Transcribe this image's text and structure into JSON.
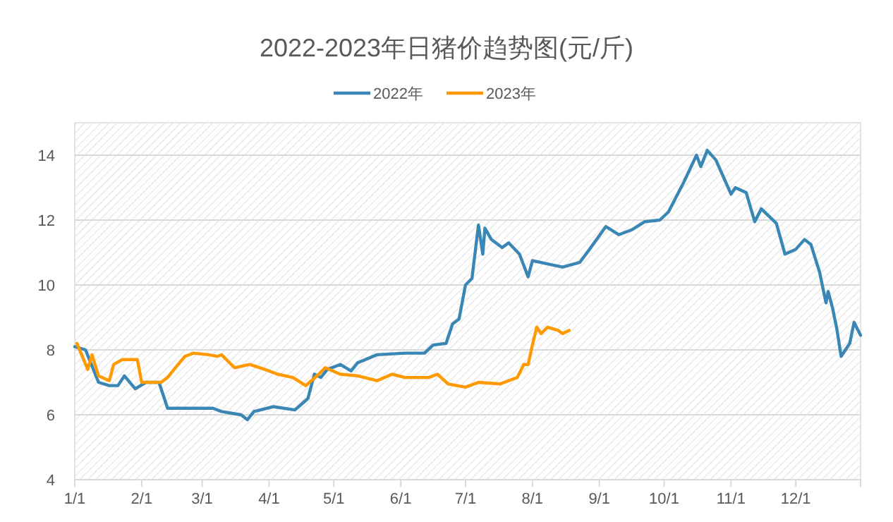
{
  "chart_data": {
    "type": "line",
    "title": "2022-2023年日猪价趋势图(元/斤)",
    "legend": "top",
    "grid": "y",
    "marker": "none",
    "line_style": "solid",
    "xlim": [
      "--01-01",
      "--12-31"
    ],
    "xticks": [
      {
        "value": "--01-01",
        "label": "1/1"
      },
      {
        "value": "--02-01",
        "label": "2/1"
      },
      {
        "value": "--03-01",
        "label": "3/1"
      },
      {
        "value": "--04-01",
        "label": "4/1"
      },
      {
        "value": "--05-01",
        "label": "5/1"
      },
      {
        "value": "--06-01",
        "label": "6/1"
      },
      {
        "value": "--07-01",
        "label": "7/1"
      },
      {
        "value": "--08-01",
        "label": "8/1"
      },
      {
        "value": "--09-01",
        "label": "9/1"
      },
      {
        "value": "--10-01",
        "label": "10/1"
      },
      {
        "value": "--11-01",
        "label": "11/1"
      },
      {
        "value": "--12-01",
        "label": "12/1"
      }
    ],
    "ylim": [
      4,
      15
    ],
    "yticks": [
      4,
      6,
      8,
      10,
      12,
      14
    ],
    "series": [
      {
        "name": "2022年",
        "color": "#3a87b5",
        "x": [
          "--01-01",
          "--01-06",
          "--01-09",
          "--01-12",
          "--01-17",
          "--01-21",
          "--01-24",
          "--01-29",
          "--02-03",
          "--02-09",
          "--02-13",
          "--02-18",
          "--03-06",
          "--03-10",
          "--03-19",
          "--03-22",
          "--03-25",
          "--04-03",
          "--04-13",
          "--04-19",
          "--04-22",
          "--04-25",
          "--04-28",
          "--05-04",
          "--05-09",
          "--05-12",
          "--05-21",
          "--06-03",
          "--06-12",
          "--06-16",
          "--06-22",
          "--06-25",
          "--06-28",
          "--07-01",
          "--07-04",
          "--07-07",
          "--07-09",
          "--07-10",
          "--07-13",
          "--07-18",
          "--07-21",
          "--07-26",
          "--07-30",
          "--08-01",
          "--08-08",
          "--08-15",
          "--08-23",
          "--08-28",
          "--09-04",
          "--09-10",
          "--09-16",
          "--09-22",
          "--09-29",
          "--10-03",
          "--10-10",
          "--10-16",
          "--10-18",
          "--10-21",
          "--10-25",
          "--10-29",
          "--11-01",
          "--11-03",
          "--11-08",
          "--11-12",
          "--11-15",
          "--11-22",
          "--11-26",
          "--12-01",
          "--12-05",
          "--12-08",
          "--12-12",
          "--12-15",
          "--12-16",
          "--12-18",
          "--12-20",
          "--12-22",
          "--12-26",
          "--12-28",
          "--12-31"
        ],
        "values": [
          8.1,
          8.0,
          7.5,
          7.0,
          6.9,
          6.9,
          7.2,
          6.8,
          7.0,
          7.0,
          6.2,
          6.2,
          6.2,
          6.1,
          6.0,
          5.85,
          6.1,
          6.25,
          6.15,
          6.5,
          7.25,
          7.15,
          7.4,
          7.55,
          7.35,
          7.6,
          7.85,
          7.9,
          7.9,
          8.15,
          8.2,
          8.8,
          8.95,
          10.0,
          10.2,
          11.85,
          10.95,
          11.75,
          11.4,
          11.15,
          11.3,
          10.95,
          10.25,
          10.75,
          10.65,
          10.55,
          10.7,
          11.15,
          11.8,
          11.55,
          11.7,
          11.95,
          12.0,
          12.25,
          13.15,
          14.0,
          13.65,
          14.15,
          13.85,
          13.25,
          12.8,
          13.0,
          12.85,
          11.95,
          12.35,
          11.9,
          10.95,
          11.1,
          11.4,
          11.25,
          10.4,
          9.45,
          9.8,
          9.3,
          8.65,
          7.8,
          8.2,
          8.85,
          8.45
        ]
      },
      {
        "name": "2023年",
        "color": "#ff9900",
        "x": [
          "--01-02",
          "--01-07",
          "--01-09",
          "--01-12",
          "--01-17",
          "--01-19",
          "--01-23",
          "--01-30",
          "--02-01",
          "--02-10",
          "--02-13",
          "--02-16",
          "--02-21",
          "--02-25",
          "--03-04",
          "--03-08",
          "--03-10",
          "--03-16",
          "--03-23",
          "--03-30",
          "--04-05",
          "--04-12",
          "--04-18",
          "--04-24",
          "--04-27",
          "--05-04",
          "--05-12",
          "--05-21",
          "--05-28",
          "--06-03",
          "--06-14",
          "--06-18",
          "--06-23",
          "--07-01",
          "--07-07",
          "--07-17",
          "--07-25",
          "--07-28",
          "--07-30",
          "--08-01",
          "--08-03",
          "--08-05",
          "--08-08",
          "--08-13",
          "--08-15",
          "--08-18"
        ],
        "values": [
          8.2,
          7.4,
          7.85,
          7.2,
          7.05,
          7.55,
          7.7,
          7.7,
          7.0,
          7.0,
          7.15,
          7.4,
          7.8,
          7.9,
          7.85,
          7.8,
          7.85,
          7.45,
          7.55,
          7.4,
          7.25,
          7.15,
          6.9,
          7.25,
          7.45,
          7.25,
          7.2,
          7.05,
          7.25,
          7.15,
          7.15,
          7.25,
          6.95,
          6.85,
          7.0,
          6.95,
          7.15,
          7.55,
          7.55,
          8.15,
          8.7,
          8.5,
          8.7,
          8.6,
          8.5,
          8.6
        ]
      }
    ]
  }
}
